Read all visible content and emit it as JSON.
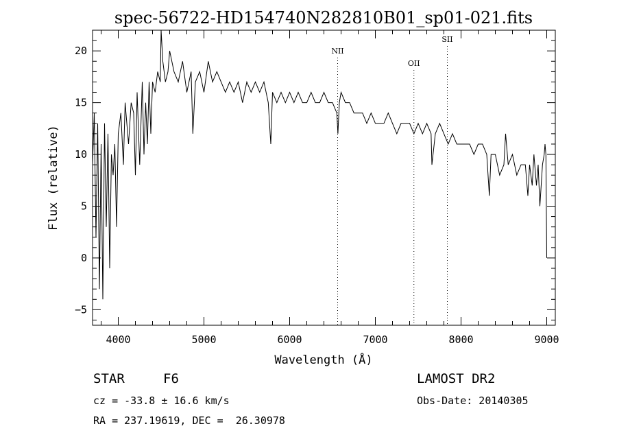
{
  "chart_data": {
    "type": "line",
    "title": "spec-56722-HD154740N282810B01_sp01-021.fits",
    "xlabel": "Wavelength (Å)",
    "ylabel": "Flux (relative)",
    "xlim": [
      3700,
      9100
    ],
    "ylim": [
      -6.5,
      22
    ],
    "xticks": [
      4000,
      5000,
      6000,
      7000,
      8000,
      9000
    ],
    "yticks": [
      -5,
      0,
      5,
      10,
      15,
      20
    ],
    "grid": false,
    "line_color": "#000000",
    "series": [
      {
        "name": "flux",
        "x": [
          3700,
          3720,
          3740,
          3760,
          3780,
          3800,
          3820,
          3840,
          3860,
          3880,
          3900,
          3920,
          3940,
          3960,
          3980,
          4000,
          4030,
          4060,
          4080,
          4100,
          4120,
          4150,
          4180,
          4200,
          4220,
          4250,
          4280,
          4300,
          4320,
          4340,
          4360,
          4380,
          4400,
          4430,
          4460,
          4490,
          4500,
          4520,
          4550,
          4580,
          4600,
          4650,
          4700,
          4750,
          4800,
          4850,
          4870,
          4900,
          4950,
          5000,
          5050,
          5100,
          5150,
          5200,
          5250,
          5300,
          5350,
          5400,
          5450,
          5500,
          5550,
          5600,
          5650,
          5700,
          5750,
          5780,
          5800,
          5850,
          5900,
          5950,
          6000,
          6050,
          6100,
          6150,
          6200,
          6250,
          6300,
          6350,
          6400,
          6450,
          6500,
          6550,
          6563,
          6580,
          6600,
          6650,
          6700,
          6750,
          6800,
          6850,
          6900,
          6950,
          7000,
          7050,
          7100,
          7150,
          7200,
          7250,
          7300,
          7350,
          7400,
          7450,
          7500,
          7550,
          7600,
          7650,
          7660,
          7700,
          7750,
          7800,
          7850,
          7900,
          7950,
          8000,
          8050,
          8100,
          8150,
          8200,
          8250,
          8300,
          8330,
          8350,
          8400,
          8450,
          8500,
          8520,
          8550,
          8600,
          8650,
          8700,
          8750,
          8780,
          8800,
          8830,
          8850,
          8880,
          8900,
          8920,
          8950,
          8970,
          8980,
          8990,
          9000
        ],
        "y": [
          9,
          14,
          2,
          13,
          -3,
          11,
          -4,
          13,
          3,
          12,
          -1,
          10,
          8,
          11,
          3,
          12,
          14,
          9,
          15,
          13,
          11,
          15,
          14,
          8,
          16,
          9,
          17,
          10,
          15,
          11,
          17,
          12,
          17,
          16,
          18,
          17,
          22,
          19,
          17,
          18,
          20,
          18,
          17,
          19,
          16,
          18,
          12,
          17,
          18,
          16,
          19,
          17,
          18,
          17,
          16,
          17,
          16,
          17,
          15,
          17,
          16,
          17,
          16,
          17,
          15,
          11,
          16,
          15,
          16,
          15,
          16,
          15,
          16,
          15,
          15,
          16,
          15,
          15,
          16,
          15,
          15,
          14,
          12,
          15,
          16,
          15,
          15,
          14,
          14,
          14,
          13,
          14,
          13,
          13,
          13,
          14,
          13,
          12,
          13,
          13,
          13,
          12,
          13,
          12,
          13,
          12,
          9,
          12,
          13,
          12,
          11,
          12,
          11,
          11,
          11,
          11,
          10,
          11,
          11,
          10,
          6,
          10,
          10,
          8,
          9,
          12,
          9,
          10,
          8,
          9,
          9,
          6,
          9,
          7,
          10,
          7,
          9,
          5,
          9,
          10,
          11,
          10,
          0
        ]
      }
    ],
    "annotations": [
      {
        "label": "NII",
        "x": 6560
      },
      {
        "label": "OII",
        "x": 7450
      },
      {
        "label": "SII",
        "x": 7840
      }
    ]
  },
  "info": {
    "object_type": "STAR",
    "subclass": "F6",
    "survey": "LAMOST DR2",
    "redshift_line": "cz = -33.8 ± 16.6 km/s",
    "obs_date": "Obs-Date: 20140305",
    "coords": "RA = 237.19619, DEC =  26.30978"
  }
}
